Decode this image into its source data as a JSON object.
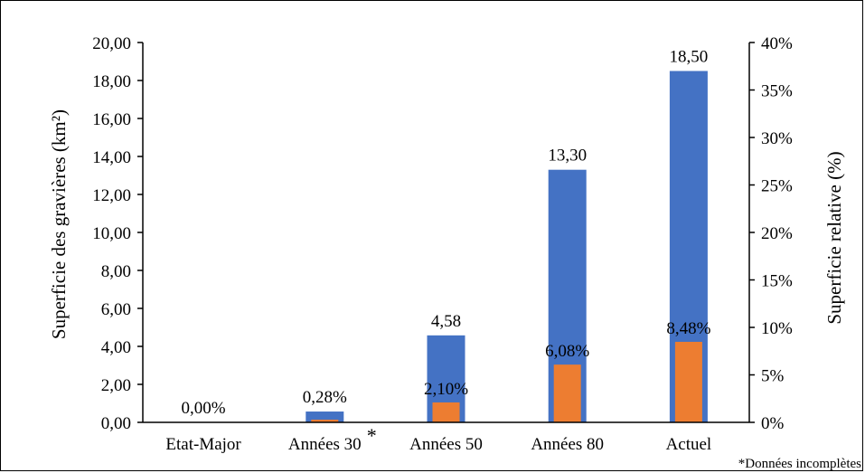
{
  "chart_data": {
    "type": "bar",
    "categories": [
      "Etat-Major",
      "Années 30",
      "Années 50",
      "Années 80",
      "Actuel"
    ],
    "category_annotations": {
      "Années 30": "*"
    },
    "series": [
      {
        "axis": "left",
        "color": "#4472C4",
        "values": [
          0.0,
          0.57,
          4.58,
          13.3,
          18.5
        ],
        "data_labels": [
          "",
          "",
          "4,58",
          "13,30",
          "18,50"
        ]
      },
      {
        "axis": "right",
        "color": "#ED7D31",
        "values": [
          0.0,
          0.28,
          2.1,
          6.08,
          8.48
        ],
        "data_labels": [
          "0,00%",
          "0,28%",
          "2,10%",
          "6,08%",
          "8,48%"
        ]
      }
    ],
    "ylabel": "Superficie des gravières (km²)",
    "ylim": [
      0,
      20
    ],
    "yticks": [
      "0,00",
      "2,00",
      "4,00",
      "6,00",
      "8,00",
      "10,00",
      "12,00",
      "14,00",
      "16,00",
      "18,00",
      "20,00"
    ],
    "y2label": "Superficie relative (%)",
    "y2lim": [
      0,
      40
    ],
    "y2ticks": [
      "0%",
      "5%",
      "10%",
      "15%",
      "20%",
      "25%",
      "30%",
      "35%",
      "40%"
    ],
    "grid": false,
    "footnote": "*Données incomplètes"
  }
}
